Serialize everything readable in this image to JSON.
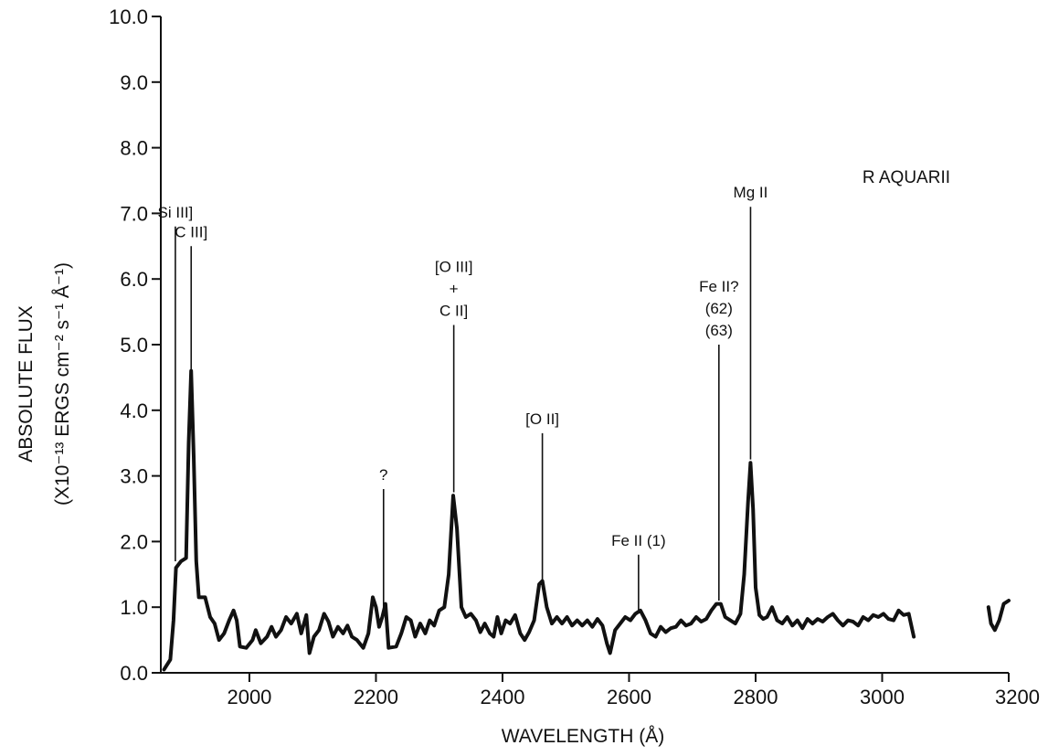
{
  "chart_data": {
    "type": "line",
    "title": "R AQUARII",
    "xlabel": "WAVELENGTH (Å)",
    "ylabel_line1": "ABSOLUTE FLUX",
    "ylabel_line2": "(X10⁻¹³ ERGS cm⁻² s⁻¹ Å⁻¹)",
    "xlim": [
      1860,
      3200
    ],
    "ylim": [
      0.0,
      10.0
    ],
    "x_ticks": [
      2000,
      2200,
      2400,
      2600,
      2800,
      3000,
      3200
    ],
    "y_ticks": [
      "0.0",
      "1.0",
      "2.0",
      "3.0",
      "4.0",
      "5.0",
      "6.0",
      "7.0",
      "8.0",
      "9.0",
      "10.0"
    ],
    "grid": false,
    "series": [
      {
        "segments": [
          [
            [
              1865,
              0.05
            ],
            [
              1875,
              0.2
            ],
            [
              1880,
              0.8
            ],
            [
              1884,
              1.6
            ],
            [
              1892,
              1.7
            ],
            [
              1900,
              1.75
            ],
            [
              1904,
              3.5
            ],
            [
              1908,
              4.6
            ],
            [
              1912,
              3.3
            ],
            [
              1916,
              1.7
            ],
            [
              1920,
              1.15
            ],
            [
              1930,
              1.15
            ],
            [
              1938,
              0.85
            ],
            [
              1945,
              0.75
            ],
            [
              1952,
              0.5
            ],
            [
              1960,
              0.6
            ],
            [
              1968,
              0.8
            ],
            [
              1975,
              0.95
            ],
            [
              1980,
              0.8
            ],
            [
              1985,
              0.4
            ],
            [
              1995,
              0.38
            ],
            [
              2005,
              0.5
            ],
            [
              2010,
              0.65
            ],
            [
              2018,
              0.45
            ],
            [
              2028,
              0.55
            ],
            [
              2035,
              0.7
            ],
            [
              2042,
              0.55
            ],
            [
              2050,
              0.65
            ],
            [
              2058,
              0.85
            ],
            [
              2066,
              0.75
            ],
            [
              2075,
              0.9
            ],
            [
              2082,
              0.6
            ],
            [
              2090,
              0.88
            ],
            [
              2095,
              0.3
            ],
            [
              2102,
              0.55
            ],
            [
              2110,
              0.65
            ],
            [
              2118,
              0.9
            ],
            [
              2125,
              0.78
            ],
            [
              2132,
              0.55
            ],
            [
              2140,
              0.7
            ],
            [
              2148,
              0.6
            ],
            [
              2155,
              0.72
            ],
            [
              2162,
              0.55
            ],
            [
              2170,
              0.5
            ],
            [
              2180,
              0.38
            ],
            [
              2188,
              0.6
            ],
            [
              2195,
              1.15
            ],
            [
              2200,
              1.0
            ],
            [
              2205,
              0.7
            ],
            [
              2210,
              0.85
            ],
            [
              2215,
              1.05
            ],
            [
              2220,
              0.38
            ],
            [
              2232,
              0.4
            ],
            [
              2240,
              0.6
            ],
            [
              2248,
              0.85
            ],
            [
              2255,
              0.8
            ],
            [
              2262,
              0.55
            ],
            [
              2270,
              0.75
            ],
            [
              2278,
              0.6
            ],
            [
              2285,
              0.8
            ],
            [
              2292,
              0.72
            ],
            [
              2300,
              0.95
            ],
            [
              2308,
              1.0
            ],
            [
              2315,
              1.5
            ],
            [
              2322,
              2.7
            ],
            [
              2328,
              2.2
            ],
            [
              2335,
              1.0
            ],
            [
              2342,
              0.85
            ],
            [
              2350,
              0.9
            ],
            [
              2358,
              0.8
            ],
            [
              2365,
              0.62
            ],
            [
              2372,
              0.75
            ],
            [
              2380,
              0.6
            ],
            [
              2386,
              0.55
            ],
            [
              2392,
              0.85
            ],
            [
              2398,
              0.6
            ],
            [
              2405,
              0.8
            ],
            [
              2412,
              0.75
            ],
            [
              2420,
              0.88
            ],
            [
              2428,
              0.6
            ],
            [
              2435,
              0.5
            ],
            [
              2442,
              0.62
            ],
            [
              2450,
              0.8
            ],
            [
              2458,
              1.35
            ],
            [
              2463,
              1.4
            ],
            [
              2470,
              1.0
            ],
            [
              2478,
              0.75
            ],
            [
              2486,
              0.85
            ],
            [
              2494,
              0.75
            ],
            [
              2502,
              0.85
            ],
            [
              2510,
              0.72
            ],
            [
              2518,
              0.8
            ],
            [
              2526,
              0.72
            ],
            [
              2534,
              0.8
            ],
            [
              2542,
              0.7
            ],
            [
              2550,
              0.82
            ],
            [
              2558,
              0.72
            ],
            [
              2565,
              0.45
            ],
            [
              2570,
              0.3
            ],
            [
              2578,
              0.65
            ],
            [
              2586,
              0.75
            ],
            [
              2594,
              0.85
            ],
            [
              2602,
              0.8
            ],
            [
              2610,
              0.9
            ],
            [
              2618,
              0.95
            ],
            [
              2626,
              0.8
            ],
            [
              2634,
              0.6
            ],
            [
              2642,
              0.55
            ],
            [
              2650,
              0.7
            ],
            [
              2658,
              0.62
            ],
            [
              2666,
              0.68
            ],
            [
              2674,
              0.7
            ],
            [
              2682,
              0.8
            ],
            [
              2690,
              0.72
            ],
            [
              2698,
              0.75
            ],
            [
              2706,
              0.85
            ],
            [
              2714,
              0.78
            ],
            [
              2722,
              0.82
            ],
            [
              2730,
              0.95
            ],
            [
              2738,
              1.05
            ],
            [
              2745,
              1.05
            ],
            [
              2752,
              0.85
            ],
            [
              2760,
              0.8
            ],
            [
              2768,
              0.75
            ],
            [
              2776,
              0.9
            ],
            [
              2782,
              1.5
            ],
            [
              2788,
              2.6
            ],
            [
              2792,
              3.2
            ],
            [
              2796,
              2.5
            ],
            [
              2800,
              1.3
            ],
            [
              2806,
              0.88
            ],
            [
              2812,
              0.82
            ],
            [
              2818,
              0.85
            ],
            [
              2826,
              1.0
            ],
            [
              2834,
              0.8
            ],
            [
              2842,
              0.75
            ],
            [
              2850,
              0.85
            ],
            [
              2858,
              0.72
            ],
            [
              2866,
              0.8
            ],
            [
              2874,
              0.68
            ],
            [
              2882,
              0.82
            ],
            [
              2890,
              0.75
            ],
            [
              2898,
              0.82
            ],
            [
              2906,
              0.78
            ],
            [
              2914,
              0.85
            ],
            [
              2922,
              0.9
            ],
            [
              2930,
              0.8
            ],
            [
              2938,
              0.72
            ],
            [
              2946,
              0.8
            ],
            [
              2954,
              0.78
            ],
            [
              2962,
              0.72
            ],
            [
              2970,
              0.85
            ],
            [
              2978,
              0.8
            ],
            [
              2986,
              0.88
            ],
            [
              2994,
              0.85
            ],
            [
              3002,
              0.9
            ],
            [
              3010,
              0.82
            ],
            [
              3018,
              0.8
            ],
            [
              3026,
              0.95
            ],
            [
              3034,
              0.88
            ],
            [
              3042,
              0.9
            ],
            [
              3050,
              0.55
            ]
          ],
          [
            [
              3168,
              1.0
            ],
            [
              3172,
              0.75
            ],
            [
              3178,
              0.65
            ],
            [
              3185,
              0.8
            ],
            [
              3192,
              1.05
            ],
            [
              3200,
              1.1
            ]
          ]
        ]
      }
    ],
    "annotations": [
      {
        "lines": [
          "Si III]"
        ],
        "x": 1883,
        "line_from": 1.7,
        "line_to": 6.8
      },
      {
        "lines": [
          "C III]"
        ],
        "x": 1908,
        "line_from": 4.6,
        "line_to": 6.5
      },
      {
        "lines": [
          "[O III]",
          "+",
          "C II]"
        ],
        "x": 2323,
        "line_from": 2.75,
        "line_to": 5.3
      },
      {
        "lines": [
          "?"
        ],
        "x": 2212,
        "line_from": 1.0,
        "line_to": 2.8
      },
      {
        "lines": [
          "[O II]"
        ],
        "x": 2463,
        "line_from": 1.42,
        "line_to": 3.65
      },
      {
        "lines": [
          "Fe II (1)"
        ],
        "x": 2615,
        "line_from": 0.95,
        "line_to": 1.8
      },
      {
        "lines": [
          "Fe II?",
          "(62)",
          "(63)"
        ],
        "x": 2742,
        "line_from": 1.1,
        "line_to": 5.0
      },
      {
        "lines": [
          "Mg II"
        ],
        "x": 2792,
        "line_from": 3.25,
        "line_to": 7.1
      }
    ]
  }
}
